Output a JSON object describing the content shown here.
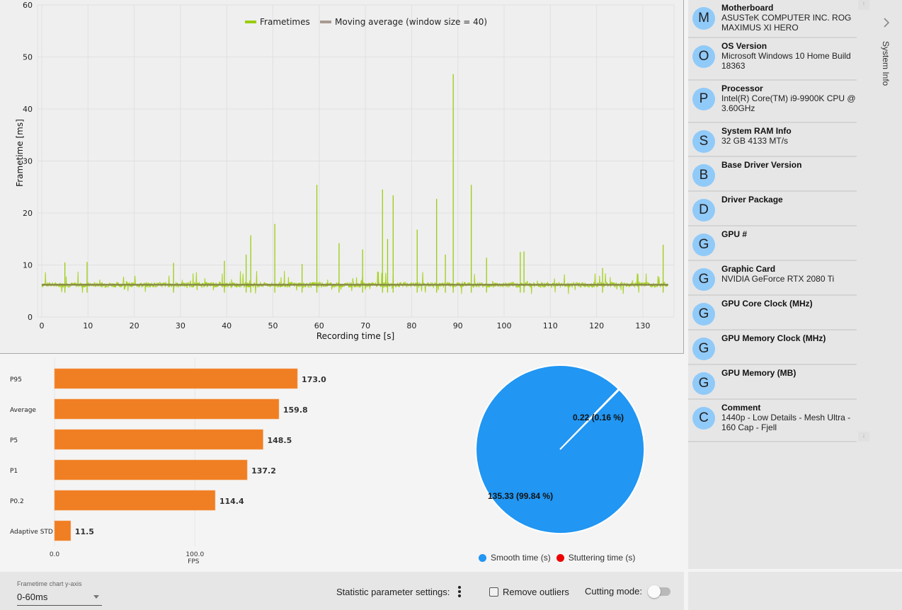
{
  "frametime_chart": {
    "title": "",
    "ylabel": "Frametime [ms]",
    "xlabel": "Recording time [s]",
    "ylim": [
      0,
      60
    ],
    "xlim": [
      0,
      136
    ],
    "yticks": [
      "0",
      "10",
      "20",
      "30",
      "40",
      "50",
      "60"
    ],
    "xticks": [
      "0",
      "10",
      "20",
      "30",
      "40",
      "50",
      "60",
      "70",
      "80",
      "90",
      "100",
      "110",
      "120",
      "130"
    ],
    "legend": [
      {
        "name": "Frametimes",
        "color": "#9acd0f"
      },
      {
        "name": "Moving average (window size = 40)",
        "color": "#a89a90"
      }
    ],
    "baseline_ms": 6.2,
    "spikes": [
      {
        "t": 5.0,
        "ms": 10.5
      },
      {
        "t": 9.8,
        "ms": 10.6
      },
      {
        "t": 28.5,
        "ms": 10.4
      },
      {
        "t": 39.5,
        "ms": 10.8
      },
      {
        "t": 44.2,
        "ms": 12.0
      },
      {
        "t": 45.2,
        "ms": 15.7
      },
      {
        "t": 50.4,
        "ms": 17.9
      },
      {
        "t": 56.3,
        "ms": 10.2
      },
      {
        "t": 59.5,
        "ms": 25.4
      },
      {
        "t": 64.3,
        "ms": 14.2
      },
      {
        "t": 69.4,
        "ms": 13.0
      },
      {
        "t": 73.7,
        "ms": 24.5
      },
      {
        "t": 74.8,
        "ms": 15.0
      },
      {
        "t": 76.0,
        "ms": 23.4
      },
      {
        "t": 81.2,
        "ms": 16.8
      },
      {
        "t": 85.4,
        "ms": 22.7
      },
      {
        "t": 87.3,
        "ms": 12.0
      },
      {
        "t": 89.0,
        "ms": 46.7
      },
      {
        "t": 92.9,
        "ms": 25.4
      },
      {
        "t": 96.2,
        "ms": 11.4
      },
      {
        "t": 103.5,
        "ms": 12.5
      },
      {
        "t": 104.3,
        "ms": 12.6
      },
      {
        "t": 121.3,
        "ms": 9.4
      },
      {
        "t": 134.4,
        "ms": 13.9
      }
    ]
  },
  "chart_data": [
    {
      "type": "bar",
      "title": "",
      "categories": [
        "P95",
        "Average",
        "P5",
        "P1",
        "P0.2",
        "Adaptive STD"
      ],
      "values": [
        173.0,
        159.8,
        148.5,
        137.2,
        114.4,
        11.5
      ],
      "value_labels": [
        "173.0",
        "159.8",
        "148.5",
        "137.2",
        "114.4",
        "11.5"
      ],
      "xlabel": "FPS",
      "xticks": [
        "0.0",
        "100.0"
      ],
      "xlim": [
        0,
        180
      ],
      "color": "#f07e22"
    },
    {
      "type": "pie",
      "title": "",
      "slices": [
        {
          "name": "Smooth time (s)",
          "value": 135.33,
          "percent": 99.84,
          "label": "135.33 (99.84 %)",
          "color": "#2196f3"
        },
        {
          "name": "Stuttering time (s)",
          "value": 0.22,
          "percent": 0.16,
          "label": "0.22 (0.16 %)",
          "color": "#ee0000"
        }
      ],
      "legend": "bottom"
    },
    {
      "type": "line",
      "title": "",
      "series": [
        {
          "name": "Frametimes",
          "values_note": "approx. 6.2 ms baseline with spikes"
        },
        {
          "name": "Moving average (window size = 40)",
          "values_note": "approx. 6.2 ms"
        }
      ],
      "xlabel": "Recording time [s]",
      "ylabel": "Frametime [ms]",
      "xlim": [
        0,
        136
      ],
      "ylim": [
        0,
        60
      ]
    }
  ],
  "bottom_bar": {
    "yaxis_label": "Frametime chart y-axis",
    "yaxis_value": "0-60ms",
    "stat_settings_label": "Statistic parameter settings:",
    "remove_outliers_label": "Remove outliers",
    "remove_outliers_checked": false,
    "cutting_mode_label": "Cutting mode:",
    "cutting_mode_on": false
  },
  "sidebar": {
    "panel_label": "System Info",
    "items": [
      {
        "initial": "M",
        "title": "Motherboard",
        "value": "ASUSTeK COMPUTER INC. ROG MAXIMUS XI HERO"
      },
      {
        "initial": "O",
        "title": "OS Version",
        "value": "Microsoft Windows 10 Home Build 18363"
      },
      {
        "initial": "P",
        "title": "Processor",
        "value": "Intel(R) Core(TM) i9-9900K CPU @ 3.60GHz"
      },
      {
        "initial": "S",
        "title": "System RAM Info",
        "value": "32 GB 4133 MT/s"
      },
      {
        "initial": "B",
        "title": "Base Driver Version",
        "value": ""
      },
      {
        "initial": "D",
        "title": "Driver Package",
        "value": ""
      },
      {
        "initial": "G",
        "title": "GPU #",
        "value": ""
      },
      {
        "initial": "G",
        "title": "Graphic Card",
        "value": "NVIDIA GeForce RTX 2080 Ti"
      },
      {
        "initial": "G",
        "title": "GPU Core Clock (MHz)",
        "value": ""
      },
      {
        "initial": "G",
        "title": "GPU Memory Clock (MHz)",
        "value": ""
      },
      {
        "initial": "G",
        "title": "GPU Memory (MB)",
        "value": ""
      },
      {
        "initial": "C",
        "title": "Comment",
        "value": "1440p - Low Details - Mesh Ultra - 160 Cap - Fjell"
      }
    ]
  }
}
